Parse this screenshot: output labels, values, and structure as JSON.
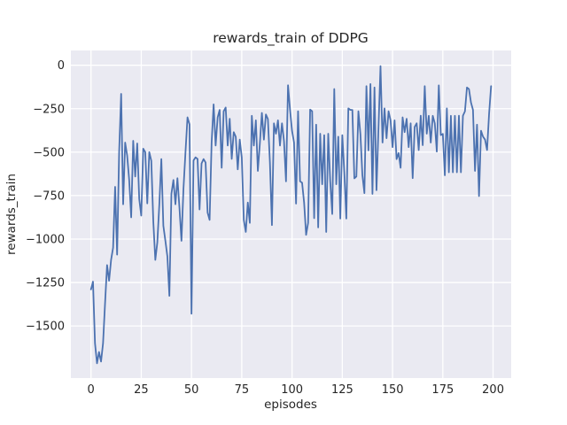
{
  "figure": {
    "title": "rewards_train of DDPG",
    "xlabel": "episodes",
    "ylabel": "rewards_train"
  },
  "chart_data": {
    "type": "line",
    "title": "rewards_train of DDPG",
    "xlabel": "episodes",
    "ylabel": "rewards_train",
    "x_ticks": [
      0,
      25,
      50,
      75,
      100,
      125,
      150,
      175,
      200
    ],
    "y_ticks": [
      0,
      -250,
      -500,
      -750,
      -1000,
      -1250,
      -1500
    ],
    "xlim": [
      -10,
      209
    ],
    "ylim": [
      -1800,
      85
    ],
    "grid": true,
    "legend_position": "none",
    "line_color": "#4c72b0",
    "plot_bg_color": "#eaeaf2",
    "grid_color": "#ffffff",
    "text_color": "#262626",
    "series": [
      {
        "name": "rewards_train",
        "x_description": "episode index 0..199",
        "values": [
          -1290,
          -1245,
          -1600,
          -1715,
          -1650,
          -1705,
          -1600,
          -1370,
          -1150,
          -1240,
          -1120,
          -1050,
          -700,
          -1090,
          -500,
          -165,
          -800,
          -445,
          -520,
          -660,
          -875,
          -435,
          -640,
          -450,
          -770,
          -865,
          -480,
          -500,
          -795,
          -500,
          -550,
          -900,
          -1120,
          -1020,
          -800,
          -540,
          -924,
          -1010,
          -1100,
          -1327,
          -740,
          -660,
          -800,
          -650,
          -820,
          -1010,
          -711,
          -500,
          -300,
          -340,
          -1430,
          -548,
          -530,
          -539,
          -830,
          -565,
          -540,
          -560,
          -848,
          -890,
          -445,
          -225,
          -462,
          -300,
          -257,
          -590,
          -265,
          -243,
          -462,
          -308,
          -539,
          -385,
          -411,
          -599,
          -428,
          -531,
          -890,
          -959,
          -790,
          -907,
          -291,
          -462,
          -317,
          -608,
          -450,
          -274,
          -428,
          -283,
          -310,
          -560,
          -920,
          -334,
          -394,
          -317,
          -462,
          -334,
          -437,
          -668,
          -115,
          -255,
          -377,
          -445,
          -796,
          -265,
          -668,
          -676,
          -790,
          -976,
          -907,
          -255,
          -265,
          -880,
          -342,
          -933,
          -394,
          -685,
          -402,
          -959,
          -394,
          -668,
          -856,
          -137,
          -685,
          -411,
          -882,
          -402,
          -616,
          -882,
          -248,
          -257,
          -257,
          -651,
          -640,
          -265,
          -394,
          -633,
          -736,
          -120,
          -490,
          -108,
          -740,
          -128,
          -719,
          -360,
          -5,
          -445,
          -248,
          -420,
          -265,
          -317,
          -471,
          -317,
          -540,
          -505,
          -590,
          -300,
          -385,
          -308,
          -471,
          -334,
          -650,
          -355,
          -334,
          -488,
          -290,
          -460,
          -120,
          -394,
          -291,
          -445,
          -291,
          -334,
          -497,
          -116,
          -402,
          -395,
          -633,
          -248,
          -616,
          -291,
          -616,
          -291,
          -616,
          -290,
          -616,
          -291,
          -265,
          -128,
          -137,
          -214,
          -257,
          -608,
          -342,
          -753,
          -377,
          -411,
          -428,
          -488,
          -280,
          -120
        ]
      }
    ]
  }
}
